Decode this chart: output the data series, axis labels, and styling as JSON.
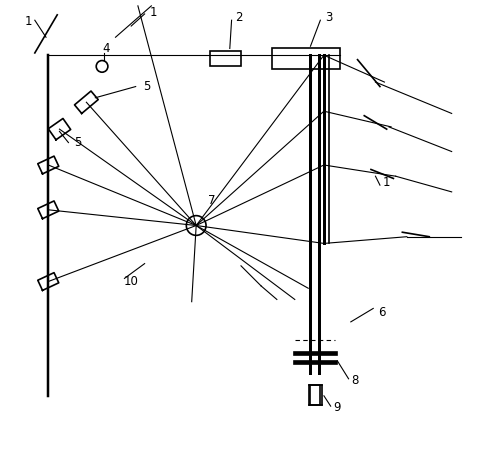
{
  "fig_width": 4.82,
  "fig_height": 4.51,
  "dpi": 100,
  "bg_color": "#ffffff",
  "lc": "#000000",
  "lw": 1.2,
  "tlw": 0.8
}
